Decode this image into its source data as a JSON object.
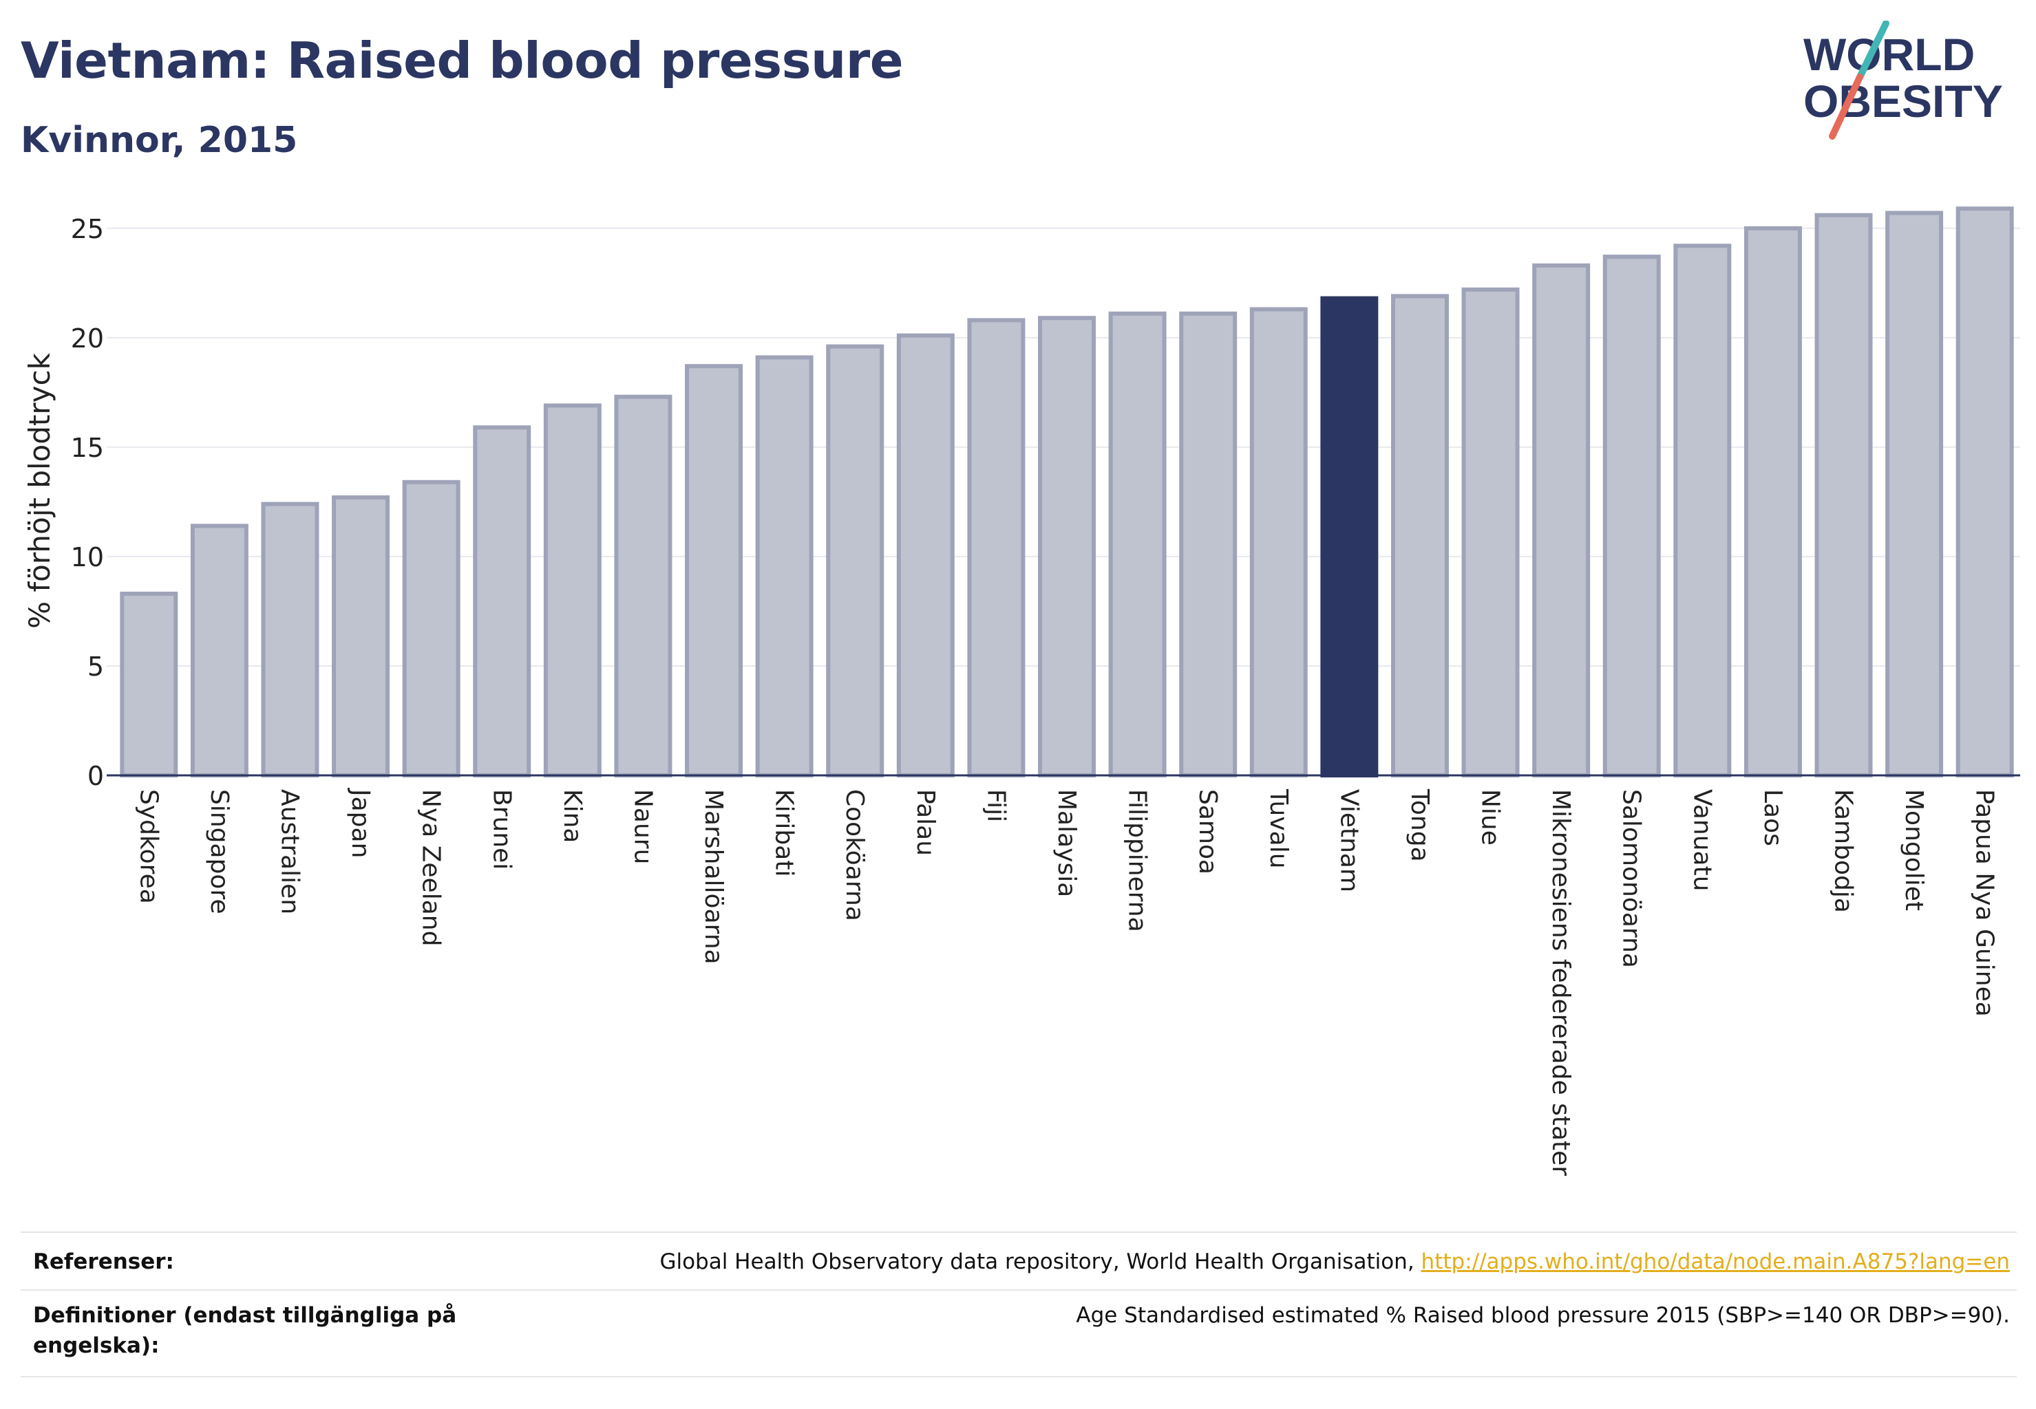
{
  "header": {
    "title": "Vietnam: Raised blood pressure",
    "subtitle": "Kvinnor, 2015"
  },
  "logo": {
    "line1": "WORLD",
    "line2": "OBESITY"
  },
  "colors": {
    "bar": "#bfc2cf",
    "bar_stroke": "#9ea3b8",
    "highlight": "#2c3662",
    "axis": "#2c3662",
    "grid": "#e8e8ee",
    "link": "#e2ae1c",
    "logo_teal": "#41b6b4",
    "logo_coral": "#e66b5a"
  },
  "chart_data": {
    "type": "bar",
    "title": "Vietnam: Raised blood pressure",
    "subtitle": "Kvinnor, 2015",
    "ylabel": "% förhöjt blodtryck",
    "xlabel": "",
    "ylim": [
      0,
      26
    ],
    "yticks": [
      0,
      5,
      10,
      15,
      20,
      25
    ],
    "grid": true,
    "highlight_category": "Vietnam",
    "categories": [
      "Sydkorea",
      "Singapore",
      "Australien",
      "Japan",
      "Nya Zeeland",
      "Brunei",
      "Kina",
      "Nauru",
      "Marshallöarna",
      "Kiribati",
      "Cooköarna",
      "Palau",
      "Fiji",
      "Malaysia",
      "Filippinerna",
      "Samoa",
      "Tuvalu",
      "Vietnam",
      "Tonga",
      "Niue",
      "Mikronesiens federerade stater",
      "Salomonöarna",
      "Vanuatu",
      "Laos",
      "Kambodja",
      "Mongoliet",
      "Papua Nya Guinea"
    ],
    "values": [
      8.3,
      11.4,
      12.4,
      12.7,
      13.4,
      15.9,
      16.9,
      17.3,
      18.7,
      19.1,
      19.6,
      20.1,
      20.8,
      20.9,
      21.1,
      21.1,
      21.3,
      21.8,
      21.9,
      22.2,
      23.3,
      23.7,
      24.2,
      25.0,
      25.6,
      25.7,
      25.9
    ]
  },
  "footer": {
    "references_label": "Referenser:",
    "references_text": "Global Health Observatory data repository, World Health Organisation, ",
    "references_link": "http://apps.who.int/gho/data/node.main.A875?lang=en",
    "definitions_label": "Definitioner (endast tillgängliga på engelska):",
    "definitions_text": "Age Standardised estimated % Raised blood pressure 2015 (SBP>=140 OR DBP>=90)."
  }
}
